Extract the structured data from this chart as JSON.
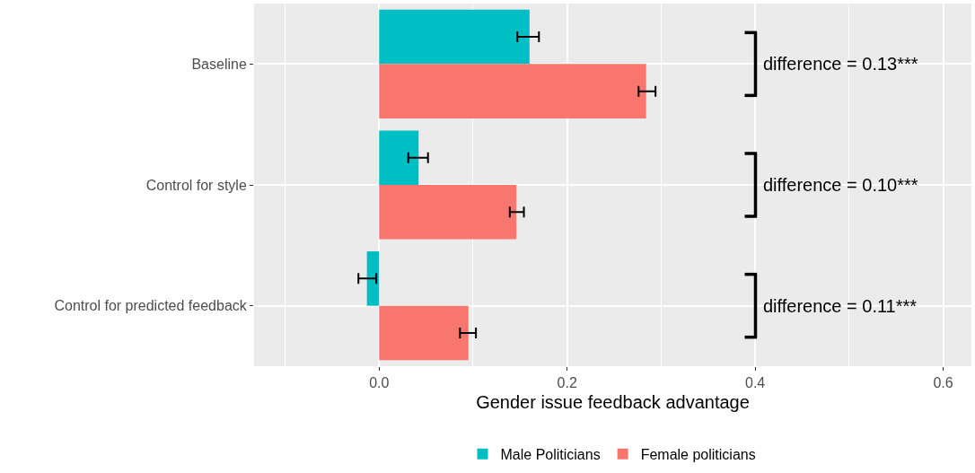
{
  "chart_data": {
    "type": "bar",
    "orientation": "horizontal",
    "xlabel": "Gender issue feedback advantage",
    "categories": [
      "Baseline",
      "Control for style",
      "Control for predicted feedback"
    ],
    "series": [
      {
        "name": "Male Politicians",
        "color": "#00bfc4",
        "values": [
          0.16,
          0.042,
          -0.013
        ],
        "errors": [
          [
            0.147,
            0.17
          ],
          [
            0.031,
            0.052
          ],
          [
            -0.022,
            -0.003
          ]
        ]
      },
      {
        "name": "Female politicians",
        "color": "#f8766d",
        "values": [
          0.284,
          0.146,
          0.095
        ],
        "errors": [
          [
            0.276,
            0.294
          ],
          [
            0.139,
            0.154
          ],
          [
            0.086,
            0.103
          ]
        ]
      }
    ],
    "xlim": [
      -0.133,
      0.63
    ],
    "xticks": [
      {
        "value": 0,
        "label": "0.0"
      },
      0.2,
      0.4,
      0.6
    ],
    "annotations": [
      "difference = 0.13***",
      "difference = 0.10***",
      "difference = 0.11***"
    ],
    "grid": true,
    "legend": "bottom"
  }
}
